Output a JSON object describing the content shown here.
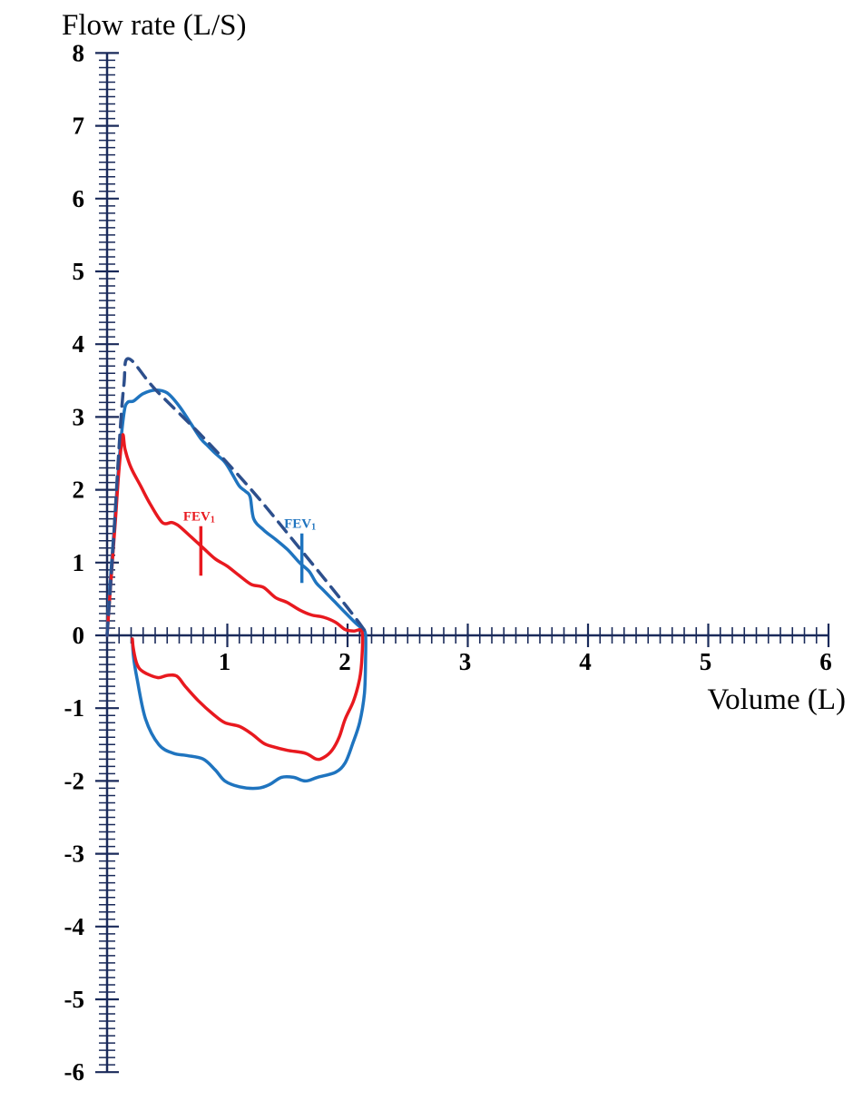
{
  "chart_data": {
    "type": "line",
    "title": "",
    "ylabel": "Flow rate (L/S)",
    "xlabel": "Volume (L)",
    "xlim": [
      0,
      6
    ],
    "ylim": [
      -6,
      8
    ],
    "x_ticks": [
      1,
      2,
      3,
      4,
      5,
      6
    ],
    "y_ticks": [
      8,
      7,
      6,
      5,
      4,
      3,
      2,
      1,
      0,
      -1,
      -2,
      -3,
      -4,
      -5,
      -6
    ],
    "minor_tick_step": 0.1,
    "grid": false,
    "legend": "none",
    "colors": {
      "red": "#e8191f",
      "blue": "#1f74bf",
      "dashed": "#2d4f8c",
      "axis": "#1a2a5a"
    },
    "series": [
      {
        "color": "#1f74bf",
        "style": "solid",
        "points": [
          [
            0.0,
            0.0
          ],
          [
            0.02,
            0.6
          ],
          [
            0.06,
            1.5
          ],
          [
            0.1,
            2.4
          ],
          [
            0.14,
            3.05
          ],
          [
            0.17,
            3.2
          ],
          [
            0.22,
            3.22
          ],
          [
            0.3,
            3.32
          ],
          [
            0.4,
            3.37
          ],
          [
            0.5,
            3.33
          ],
          [
            0.6,
            3.15
          ],
          [
            0.7,
            2.9
          ],
          [
            0.78,
            2.7
          ],
          [
            0.84,
            2.6
          ],
          [
            0.9,
            2.5
          ],
          [
            0.98,
            2.38
          ],
          [
            1.04,
            2.22
          ],
          [
            1.1,
            2.05
          ],
          [
            1.15,
            1.98
          ],
          [
            1.19,
            1.9
          ],
          [
            1.22,
            1.6
          ],
          [
            1.3,
            1.45
          ],
          [
            1.4,
            1.32
          ],
          [
            1.5,
            1.18
          ],
          [
            1.6,
            1.0
          ],
          [
            1.68,
            0.88
          ],
          [
            1.74,
            0.72
          ],
          [
            1.8,
            0.62
          ],
          [
            1.9,
            0.45
          ],
          [
            2.0,
            0.28
          ],
          [
            2.08,
            0.15
          ],
          [
            2.13,
            0.08
          ],
          [
            2.15,
            0.0
          ],
          [
            2.15,
            -0.3
          ],
          [
            2.14,
            -0.8
          ],
          [
            2.1,
            -1.2
          ],
          [
            2.04,
            -1.5
          ],
          [
            1.98,
            -1.75
          ],
          [
            1.9,
            -1.88
          ],
          [
            1.75,
            -1.95
          ],
          [
            1.65,
            -2.0
          ],
          [
            1.55,
            -1.95
          ],
          [
            1.45,
            -1.95
          ],
          [
            1.35,
            -2.05
          ],
          [
            1.25,
            -2.1
          ],
          [
            1.1,
            -2.08
          ],
          [
            0.98,
            -2.0
          ],
          [
            0.9,
            -1.85
          ],
          [
            0.8,
            -1.7
          ],
          [
            0.66,
            -1.65
          ],
          [
            0.55,
            -1.62
          ],
          [
            0.43,
            -1.5
          ],
          [
            0.32,
            -1.15
          ],
          [
            0.25,
            -0.6
          ],
          [
            0.22,
            -0.3
          ],
          [
            0.21,
            -0.05
          ]
        ]
      },
      {
        "color": "#e8191f",
        "style": "solid",
        "points": [
          [
            0.0,
            0.0
          ],
          [
            0.03,
            0.7
          ],
          [
            0.07,
            1.6
          ],
          [
            0.1,
            2.3
          ],
          [
            0.13,
            2.75
          ],
          [
            0.15,
            2.55
          ],
          [
            0.2,
            2.3
          ],
          [
            0.28,
            2.05
          ],
          [
            0.36,
            1.8
          ],
          [
            0.46,
            1.55
          ],
          [
            0.54,
            1.55
          ],
          [
            0.6,
            1.5
          ],
          [
            0.7,
            1.35
          ],
          [
            0.8,
            1.2
          ],
          [
            0.9,
            1.05
          ],
          [
            1.0,
            0.95
          ],
          [
            1.1,
            0.82
          ],
          [
            1.2,
            0.7
          ],
          [
            1.3,
            0.66
          ],
          [
            1.4,
            0.52
          ],
          [
            1.5,
            0.45
          ],
          [
            1.6,
            0.35
          ],
          [
            1.7,
            0.28
          ],
          [
            1.8,
            0.25
          ],
          [
            1.9,
            0.18
          ],
          [
            1.98,
            0.08
          ],
          [
            2.05,
            0.06
          ],
          [
            2.12,
            0.05
          ],
          [
            2.12,
            -0.3
          ],
          [
            2.1,
            -0.6
          ],
          [
            2.05,
            -0.9
          ],
          [
            1.98,
            -1.15
          ],
          [
            1.93,
            -1.4
          ],
          [
            1.87,
            -1.58
          ],
          [
            1.8,
            -1.68
          ],
          [
            1.74,
            -1.7
          ],
          [
            1.65,
            -1.62
          ],
          [
            1.5,
            -1.58
          ],
          [
            1.38,
            -1.53
          ],
          [
            1.3,
            -1.48
          ],
          [
            1.2,
            -1.35
          ],
          [
            1.1,
            -1.25
          ],
          [
            0.98,
            -1.2
          ],
          [
            0.88,
            -1.08
          ],
          [
            0.76,
            -0.9
          ],
          [
            0.65,
            -0.7
          ],
          [
            0.58,
            -0.56
          ],
          [
            0.5,
            -0.55
          ],
          [
            0.42,
            -0.58
          ],
          [
            0.3,
            -0.5
          ],
          [
            0.25,
            -0.4
          ],
          [
            0.22,
            -0.2
          ],
          [
            0.21,
            -0.05
          ]
        ]
      },
      {
        "color": "#2d4f8c",
        "style": "dashed",
        "points": [
          [
            0.0,
            0.0
          ],
          [
            0.05,
            1.2
          ],
          [
            0.1,
            2.6
          ],
          [
            0.14,
            3.45
          ],
          [
            0.18,
            3.8
          ],
          [
            0.4,
            3.38
          ],
          [
            0.8,
            2.72
          ],
          [
            1.2,
            2.0
          ],
          [
            1.6,
            1.2
          ],
          [
            2.0,
            0.38
          ],
          [
            2.15,
            0.05
          ]
        ]
      }
    ],
    "annotations": [
      {
        "text": "FEV",
        "subscript": "1",
        "color": "#e8191f",
        "x": 0.78,
        "y_from": 0.82,
        "y_to": 1.5,
        "label_y": 1.58
      },
      {
        "text": "FEV",
        "subscript": "1",
        "color": "#1f74bf",
        "x": 1.62,
        "y_from": 0.72,
        "y_to": 1.4,
        "label_y": 1.48
      }
    ]
  }
}
